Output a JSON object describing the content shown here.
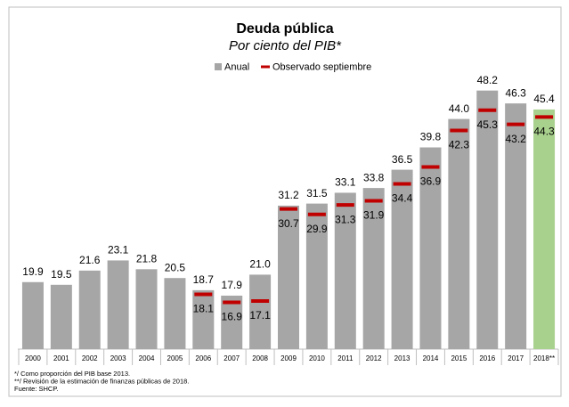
{
  "chart_data": {
    "type": "bar",
    "title": "Deuda pública",
    "subtitle": "Por ciento del PIB*",
    "categories": [
      "2000",
      "2001",
      "2002",
      "2003",
      "2004",
      "2005",
      "2006",
      "2007",
      "2008",
      "2009",
      "2010",
      "2011",
      "2012",
      "2013",
      "2014",
      "2015",
      "2016",
      "2017",
      "2018**"
    ],
    "series": [
      {
        "name": "Anual",
        "color": "#a6a6a6",
        "type": "bar",
        "colors": [
          "#a6a6a6",
          "#a6a6a6",
          "#a6a6a6",
          "#a6a6a6",
          "#a6a6a6",
          "#a6a6a6",
          "#a6a6a6",
          "#a6a6a6",
          "#a6a6a6",
          "#a6a6a6",
          "#a6a6a6",
          "#a6a6a6",
          "#a6a6a6",
          "#a6a6a6",
          "#a6a6a6",
          "#a6a6a6",
          "#a6a6a6",
          "#a6a6a6",
          "#a9d18e"
        ],
        "values": [
          19.9,
          19.5,
          21.6,
          23.1,
          21.8,
          20.5,
          18.7,
          17.9,
          21.0,
          31.2,
          31.5,
          33.1,
          33.8,
          36.5,
          39.8,
          44.0,
          48.2,
          46.3,
          45.4
        ],
        "value_labels": [
          "19.9",
          "19.5",
          "21.6",
          "23.1",
          "21.8",
          "20.5",
          "18.7",
          "17.9",
          "21.0",
          "31.2",
          "31.5",
          "33.1",
          "33.8",
          "36.5",
          "39.8",
          "44.0",
          "48.2",
          "46.3",
          "45.4"
        ]
      },
      {
        "name": "Observado septiembre",
        "color": "#c00000",
        "type": "marker",
        "values": [
          null,
          null,
          null,
          null,
          null,
          null,
          18.1,
          16.9,
          17.1,
          30.7,
          29.9,
          31.3,
          31.9,
          34.4,
          36.9,
          42.3,
          45.3,
          43.2,
          44.3
        ]
      }
    ],
    "ylim": [
      10,
      60
    ],
    "footnotes": [
      "*/ Como proporción del PIB base 2013.",
      "**/ Revisión de la estimación de finanzas públicas de 2018.",
      "Fuente: SHCP."
    ]
  }
}
